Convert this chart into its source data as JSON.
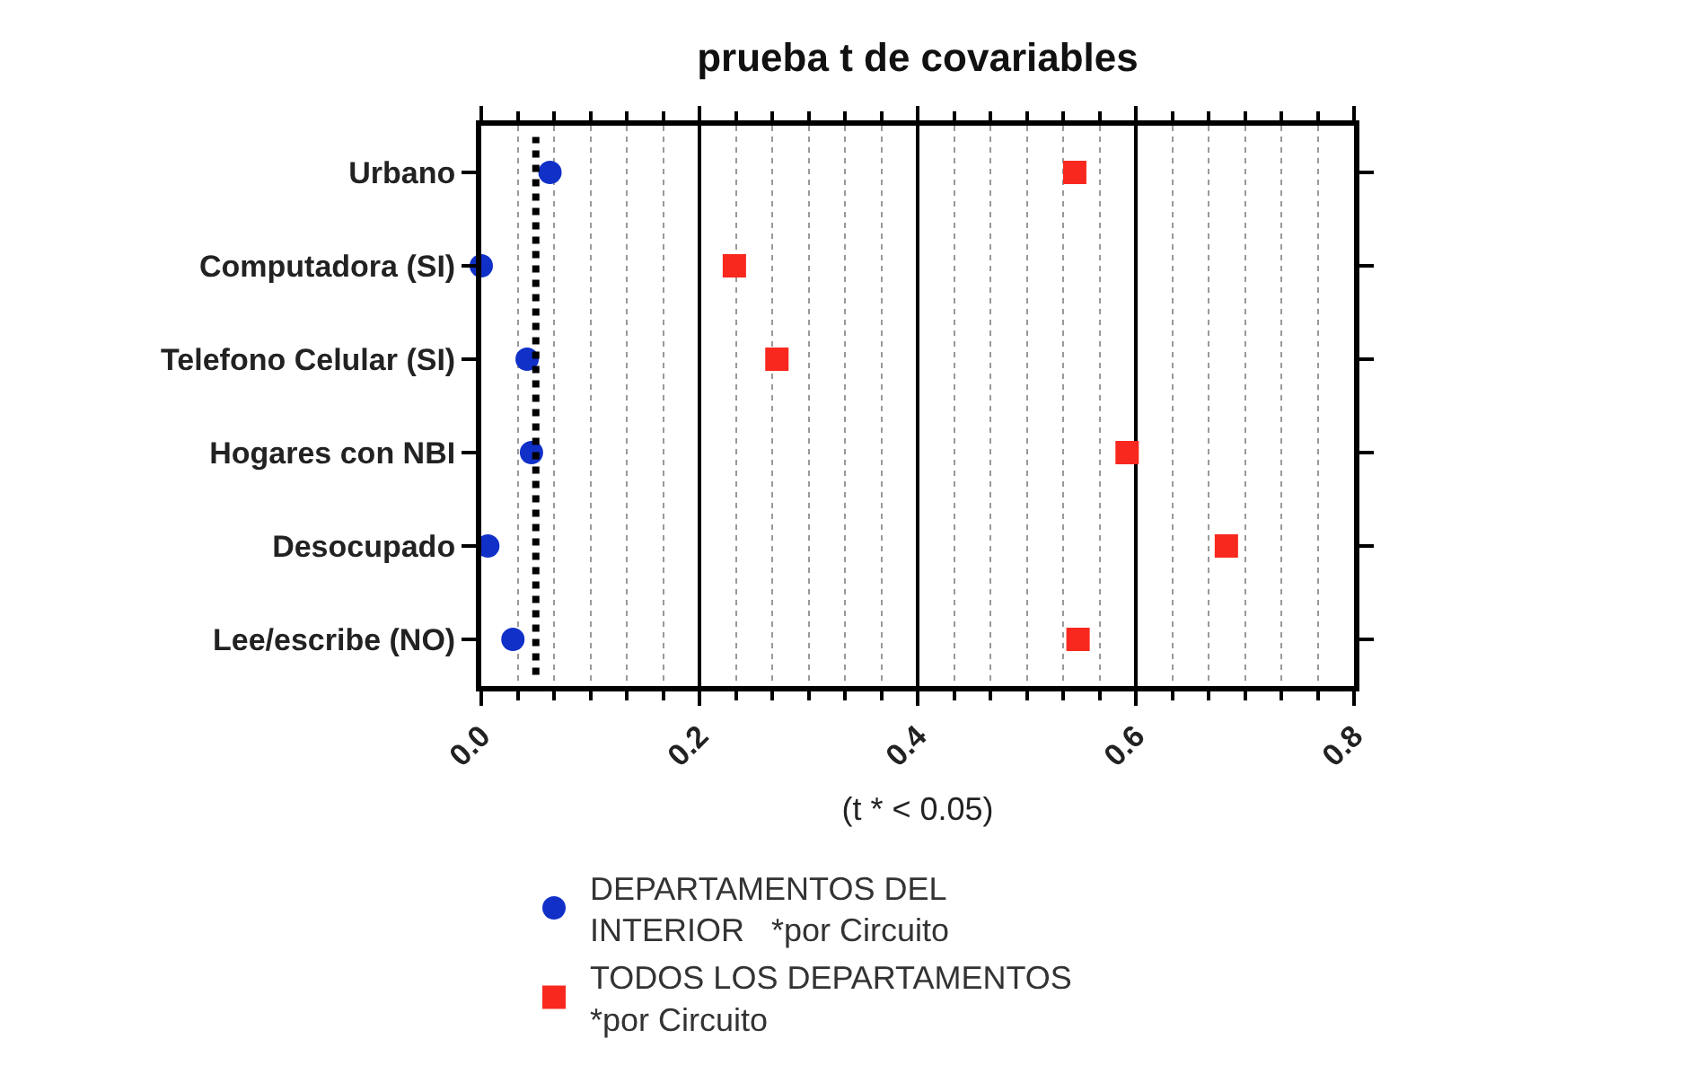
{
  "chart_data": {
    "type": "scatter",
    "title": "prueba t de covariables",
    "xlabel": "(t * < 0.05)",
    "categories": [
      "Urbano",
      "Computadora (SI)",
      "Telefono Celular (SI)",
      "Hogares con NBI",
      "Desocupado",
      "Lee/escribe (NO)"
    ],
    "orientation": "horizontal",
    "series": [
      {
        "name": "DEPARTAMENTOS DEL\nINTERIOR   *por Circuito",
        "color": "#1030c8",
        "marker": "circle",
        "values": [
          0.063,
          0.0,
          0.042,
          0.046,
          0.006,
          0.029
        ]
      },
      {
        "name": "TODOS LOS DEPARTAMENTOS\n*por Circuito",
        "color": "#f8281e",
        "marker": "square",
        "values": [
          0.544,
          0.232,
          0.271,
          0.592,
          0.683,
          0.547
        ]
      }
    ],
    "xlim": [
      0,
      0.8
    ],
    "xticks": [
      {
        "value": 0,
        "label": "0.0"
      },
      0.2,
      0.4,
      0.6,
      0.8
    ],
    "ref_lines": [
      {
        "axis": "x",
        "value": 0.05,
        "line_style": "dotted",
        "color": "#000000"
      }
    ],
    "grid": "x",
    "legend": "bottom"
  }
}
